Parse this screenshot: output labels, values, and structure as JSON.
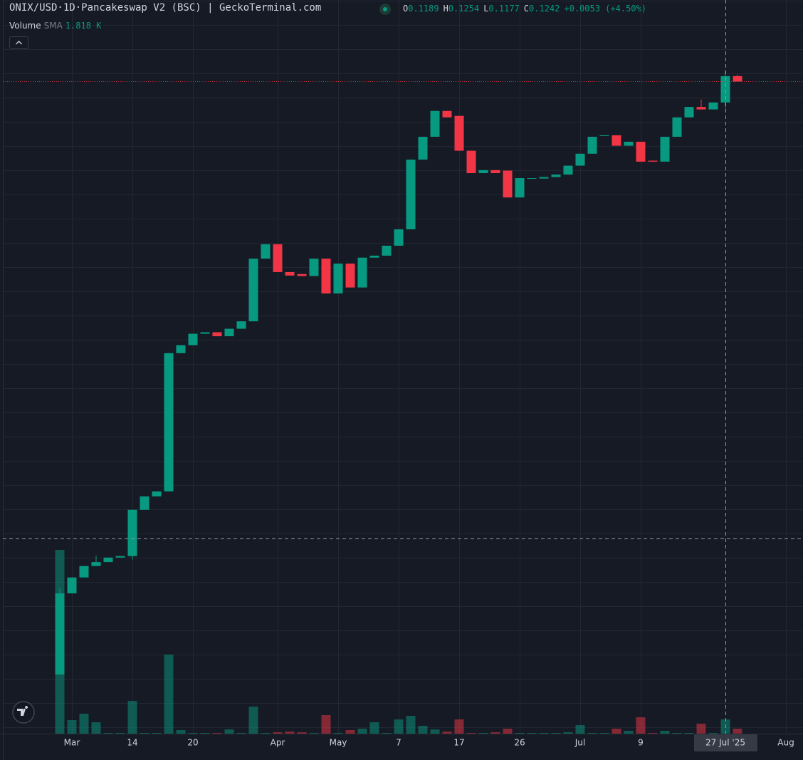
{
  "chart_data": {
    "type": "candlestick",
    "title": "ONIX/USD·1D·Pancakeswap V2 (BSC) | GeckoTerminal.com",
    "ohlc_letters": [
      "O",
      "H",
      "L",
      "C"
    ],
    "change_label": "+0.0053 (+4.50%)",
    "volume_label": "Volume",
    "sma_label": "SMA",
    "sma_value_label": "1.818 K",
    "crosshair_index": 55,
    "up_color": "#089981",
    "down_color": "#f23645",
    "ylim": [
      -0.008,
      0.1395
    ],
    "volume_lim": [
      0,
      103000
    ],
    "categories": [
      null,
      "Mar",
      null,
      null,
      null,
      null,
      "14",
      null,
      null,
      null,
      null,
      "20",
      null,
      null,
      null,
      null,
      null,
      null,
      "Apr",
      null,
      null,
      null,
      null,
      "May",
      null,
      null,
      null,
      null,
      "7",
      null,
      null,
      null,
      null,
      "17",
      null,
      null,
      null,
      null,
      "26",
      null,
      null,
      null,
      null,
      "Jul",
      null,
      null,
      null,
      null,
      "9",
      null,
      null,
      null,
      null,
      null,
      null,
      "27 Jul '25",
      null,
      null,
      null,
      null,
      "Aug"
    ],
    "open": [
      0.0039,
      0.0202,
      0.0234,
      0.0257,
      0.0265,
      0.0274,
      0.0277,
      0.037,
      0.0397,
      0.0407,
      0.0685,
      0.0701,
      0.0724,
      0.0727,
      0.0719,
      0.0734,
      0.0749,
      0.0875,
      0.0904,
      0.0848,
      0.0844,
      0.084,
      0.0875,
      0.0805,
      0.0865,
      0.0817,
      0.0877,
      0.0881,
      0.0901,
      0.0934,
      0.1074,
      0.112,
      0.1172,
      0.1162,
      0.1092,
      0.1047,
      0.1053,
      0.1052,
      0.0998,
      0.1036,
      0.1036,
      0.1039,
      0.1044,
      0.1062,
      0.1086,
      0.1122,
      0.1123,
      0.1102,
      0.111,
      0.1072,
      0.107,
      0.112,
      0.1159,
      0.118,
      0.1175,
      0.1189,
      0.1242,
      null,
      null,
      null,
      null
    ],
    "high": [
      0.0212,
      0.0234,
      0.0257,
      0.0278,
      0.0274,
      0.0277,
      0.037,
      0.0397,
      0.0407,
      0.0685,
      0.0701,
      0.0724,
      0.0727,
      0.0727,
      0.0734,
      0.0749,
      0.0875,
      0.0904,
      0.0904,
      0.0848,
      0.0844,
      0.0875,
      0.0875,
      0.0865,
      0.0865,
      0.0877,
      0.0881,
      0.0901,
      0.0934,
      0.1074,
      0.112,
      0.1172,
      0.1172,
      0.1162,
      0.1092,
      0.1053,
      0.1053,
      0.1052,
      0.1037,
      0.1037,
      0.1039,
      0.1044,
      0.1062,
      0.1086,
      0.112,
      0.1123,
      0.1123,
      0.111,
      0.111,
      0.1072,
      0.112,
      0.1159,
      0.118,
      0.1195,
      0.1189,
      0.1254,
      0.1245,
      null,
      null,
      null,
      null
    ],
    "low": [
      0.0039,
      0.0202,
      0.0234,
      0.0257,
      0.0265,
      0.0274,
      0.027,
      0.037,
      0.0397,
      0.0407,
      0.0685,
      0.0701,
      0.0724,
      0.0719,
      0.0719,
      0.0734,
      0.0749,
      0.0875,
      0.0848,
      0.0841,
      0.084,
      0.084,
      0.0805,
      0.0805,
      0.0817,
      0.0817,
      0.0877,
      0.0881,
      0.0901,
      0.0934,
      0.1074,
      0.112,
      0.1159,
      0.1092,
      0.1047,
      0.1047,
      0.1047,
      0.0998,
      0.0998,
      0.1036,
      0.1036,
      0.1039,
      0.1044,
      0.1062,
      0.1086,
      0.1122,
      0.1102,
      0.1102,
      0.107,
      0.107,
      0.107,
      0.112,
      0.1159,
      0.1175,
      0.1175,
      0.1177,
      0.1231,
      null,
      null,
      null,
      null
    ],
    "close": [
      0.0202,
      0.0234,
      0.0257,
      0.0265,
      0.0274,
      0.0277,
      0.037,
      0.0397,
      0.0407,
      0.0685,
      0.0701,
      0.0724,
      0.0727,
      0.0719,
      0.0734,
      0.0749,
      0.0875,
      0.0904,
      0.0848,
      0.0841,
      0.084,
      0.0875,
      0.0805,
      0.0865,
      0.0817,
      0.0877,
      0.0881,
      0.0901,
      0.0934,
      0.1074,
      0.112,
      0.1172,
      0.1159,
      0.1092,
      0.1047,
      0.1053,
      0.1047,
      0.0998,
      0.1037,
      0.1037,
      0.1039,
      0.1044,
      0.1062,
      0.1086,
      0.112,
      0.1123,
      0.1102,
      0.111,
      0.107,
      0.107,
      0.112,
      0.1159,
      0.118,
      0.1175,
      0.1189,
      0.1242,
      0.1231,
      null,
      null,
      null,
      null
    ],
    "volume": [
      25800,
      1900,
      2800,
      1600,
      100,
      100,
      4600,
      100,
      100,
      11100,
      500,
      100,
      100,
      100,
      600,
      100,
      3800,
      100,
      200,
      300,
      200,
      100,
      2600,
      100,
      500,
      700,
      1600,
      100,
      2000,
      2500,
      1100,
      600,
      300,
      2000,
      100,
      100,
      200,
      700,
      100,
      100,
      100,
      100,
      200,
      1200,
      100,
      100,
      700,
      400,
      2300,
      100,
      400,
      100,
      100,
      1400,
      100,
      2000,
      700,
      null,
      null,
      null,
      null
    ]
  }
}
